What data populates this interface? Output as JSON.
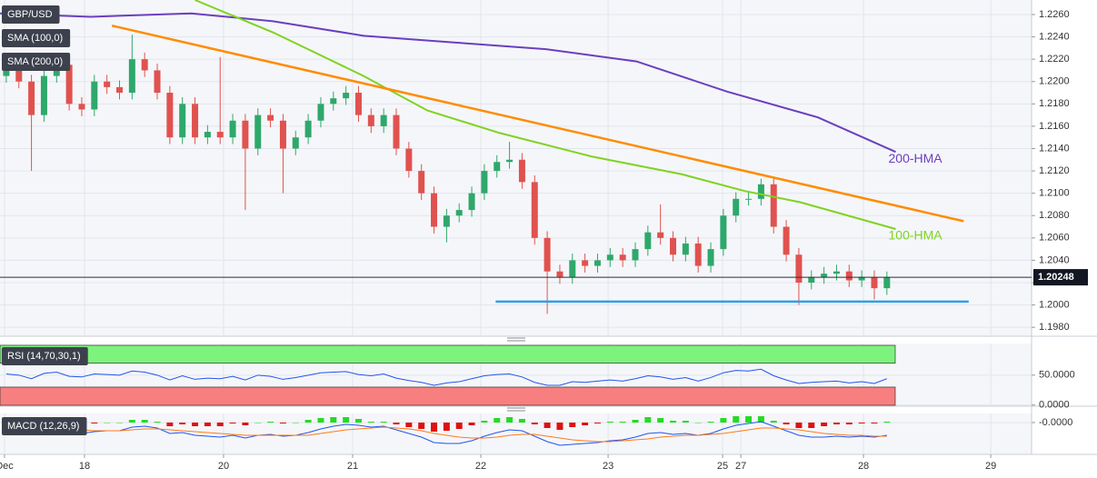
{
  "chart_data": [
    {
      "type": "candlestick",
      "title": "GBP/USD",
      "legend": [
        "SMA (100,0)",
        "SMA (200,0)"
      ],
      "x": [
        0,
        1,
        2,
        3,
        4,
        5,
        6,
        7,
        8,
        9,
        10,
        11,
        12,
        13,
        14,
        15,
        16,
        17,
        18,
        19,
        20,
        21,
        22,
        23,
        24,
        25,
        26,
        27,
        28,
        29,
        30,
        31,
        32,
        33,
        34,
        35,
        36,
        37,
        38,
        39,
        40,
        41,
        42,
        43,
        44,
        45,
        46,
        47,
        48,
        49,
        50,
        51,
        52,
        53,
        54,
        55,
        56,
        57,
        58,
        59,
        60,
        61,
        62,
        63,
        64,
        65,
        66,
        67,
        68,
        69,
        70
      ],
      "open": [
        1.2205,
        1.221,
        1.22,
        1.217,
        1.2205,
        1.2215,
        1.218,
        1.2175,
        1.22,
        1.2195,
        1.219,
        1.222,
        1.221,
        1.219,
        1.215,
        1.218,
        1.215,
        1.2155,
        1.215,
        1.2165,
        1.214,
        1.217,
        1.2165,
        1.214,
        1.215,
        1.2165,
        1.218,
        1.2185,
        1.219,
        1.217,
        1.216,
        1.217,
        1.214,
        1.212,
        1.21,
        1.207,
        1.208,
        1.2085,
        1.21,
        1.212,
        1.2128,
        1.213,
        1.211,
        1.206,
        1.203,
        1.2025,
        1.204,
        1.2035,
        1.204,
        1.2045,
        1.204,
        1.205,
        1.2065,
        1.206,
        1.2045,
        1.2055,
        1.2035,
        1.205,
        1.208,
        1.2095,
        1.2095,
        1.2108,
        1.207,
        1.2045,
        1.202,
        1.2025,
        1.2028,
        1.203,
        1.2022,
        1.2025,
        1.2015
      ],
      "high": [
        1.2216,
        1.2216,
        1.2206,
        1.2211,
        1.2221,
        1.2221,
        1.2186,
        1.2206,
        1.2206,
        1.2201,
        1.2242,
        1.2226,
        1.2216,
        1.2196,
        1.2186,
        1.2186,
        1.2161,
        1.2222,
        1.2171,
        1.2171,
        1.2176,
        1.2176,
        1.2171,
        1.2156,
        1.2171,
        1.2186,
        1.2191,
        1.2196,
        1.2196,
        1.2176,
        1.2176,
        1.2176,
        1.2146,
        1.2126,
        1.2106,
        1.2086,
        1.2091,
        1.2106,
        1.2126,
        1.2134,
        1.2146,
        1.2136,
        1.2116,
        1.2066,
        1.2036,
        1.2046,
        1.2046,
        1.2046,
        1.2051,
        1.2051,
        1.2056,
        1.2071,
        1.209,
        1.2066,
        1.2061,
        1.2061,
        1.2056,
        1.2086,
        1.2101,
        1.2101,
        1.2113,
        1.2114,
        1.2076,
        1.2051,
        1.2031,
        1.2034,
        1.2036,
        1.2036,
        1.2031,
        1.2031,
        1.203
      ],
      "low": [
        1.2199,
        1.2194,
        1.212,
        1.2164,
        1.2199,
        1.2174,
        1.2169,
        1.2169,
        1.2189,
        1.2184,
        1.2184,
        1.2204,
        1.2184,
        1.2144,
        1.2144,
        1.2144,
        1.2144,
        1.2144,
        1.2144,
        1.2085,
        1.2134,
        1.2159,
        1.21,
        1.2134,
        1.2144,
        1.2159,
        1.2174,
        1.2179,
        1.2164,
        1.2154,
        1.2154,
        1.2134,
        1.2114,
        1.2094,
        1.2064,
        1.2056,
        1.2074,
        1.2079,
        1.2094,
        1.2114,
        1.2122,
        1.2104,
        1.2054,
        1.1992,
        1.2019,
        1.2019,
        1.2029,
        1.2029,
        1.2034,
        1.2034,
        1.2034,
        1.2044,
        1.2054,
        1.2039,
        1.2039,
        1.2029,
        1.2029,
        1.2044,
        1.2074,
        1.2089,
        1.2089,
        1.2064,
        1.2039,
        1.2,
        1.2014,
        1.2019,
        1.2022,
        1.2016,
        1.2016,
        1.2005,
        1.2009
      ],
      "close": [
        1.221,
        1.22,
        1.217,
        1.2205,
        1.2215,
        1.218,
        1.2175,
        1.22,
        1.2195,
        1.219,
        1.222,
        1.221,
        1.219,
        1.215,
        1.218,
        1.215,
        1.2155,
        1.215,
        1.2165,
        1.214,
        1.217,
        1.2165,
        1.214,
        1.215,
        1.2165,
        1.218,
        1.2185,
        1.219,
        1.217,
        1.216,
        1.217,
        1.214,
        1.212,
        1.21,
        1.207,
        1.208,
        1.2085,
        1.21,
        1.212,
        1.2128,
        1.213,
        1.211,
        1.206,
        1.203,
        1.2025,
        1.204,
        1.2035,
        1.204,
        1.2045,
        1.204,
        1.205,
        1.2065,
        1.206,
        1.2045,
        1.2055,
        1.2035,
        1.205,
        1.208,
        1.2095,
        1.2095,
        1.2108,
        1.207,
        1.2045,
        1.202,
        1.2025,
        1.2028,
        1.203,
        1.2022,
        1.2025,
        1.2015,
        1.20248
      ],
      "up_color": "#2ea86b",
      "down_color": "#e0524f",
      "lines": [
        {
          "name": "200-HMA",
          "color": "#6a3fbf",
          "x": [
            -0.5,
            6.7,
            14.7,
            21.2,
            28.4,
            35.6,
            42.9,
            50.1,
            57.3,
            64.5,
            70.7
          ],
          "values": [
            1.2261,
            1.2258,
            1.2261,
            1.2254,
            1.2241,
            1.2235,
            1.2229,
            1.2218,
            1.2191,
            1.2168,
            1.2137
          ]
        },
        {
          "name": "100-HMA",
          "color": "#7ed321",
          "x": [
            15.0,
            21.2,
            28.4,
            33.5,
            39.2,
            46.5,
            53.7,
            58.7,
            63.1,
            70.7
          ],
          "values": [
            1.2273,
            1.2244,
            1.2205,
            1.2174,
            1.2154,
            1.2133,
            1.2117,
            1.2102,
            1.2092,
            1.2068
          ]
        }
      ],
      "trendlines": [
        {
          "color": "#ff8c00",
          "x": [
            8.4,
            76.1
          ],
          "values": [
            1.225,
            1.2075
          ]
        },
        {
          "color": "#2f9fe8",
          "x": [
            38.9,
            76.5
          ],
          "values": [
            1.2003,
            1.2003
          ]
        }
      ],
      "last_price": 1.20248,
      "xlim": [
        -0.5,
        81.5
      ],
      "ylim": [
        1.1972,
        1.2273
      ],
      "xticks": [
        {
          "value": -0.14,
          "label": "Dec"
        },
        {
          "value": 6.22,
          "label": "18"
        },
        {
          "value": 17.27,
          "label": "20"
        },
        {
          "value": 27.53,
          "label": "21"
        },
        {
          "value": 37.72,
          "label": "22"
        },
        {
          "value": 47.84,
          "label": "23"
        },
        {
          "value": 56.94,
          "label": "25"
        },
        {
          "value": 58.39,
          "label": "27"
        },
        {
          "value": 68.14,
          "label": "28"
        },
        {
          "value": 78.26,
          "label": "29"
        }
      ],
      "yticks": [
        {
          "value": 1.198,
          "label": "1.1980"
        },
        {
          "value": 1.2,
          "label": "1.2000"
        },
        {
          "value": 1.202,
          "label": "1.2020"
        },
        {
          "value": 1.204,
          "label": "1.2040"
        },
        {
          "value": 1.206,
          "label": "1.2060"
        },
        {
          "value": 1.208,
          "label": "1.2080"
        },
        {
          "value": 1.21,
          "label": "1.2100"
        },
        {
          "value": 1.212,
          "label": "1.2120"
        },
        {
          "value": 1.214,
          "label": "1.2140"
        },
        {
          "value": 1.216,
          "label": "1.2160"
        },
        {
          "value": 1.218,
          "label": "1.2180"
        },
        {
          "value": 1.22,
          "label": "1.2200"
        },
        {
          "value": 1.222,
          "label": "1.2220"
        },
        {
          "value": 1.224,
          "label": "1.2240"
        },
        {
          "value": 1.226,
          "label": "1.2260"
        }
      ],
      "grid": true
    },
    {
      "type": "rsi",
      "title": "RSI (14,70,30,1)",
      "series": [
        {
          "color": "#2255ee",
          "values": [
            52,
            50,
            44,
            53,
            55,
            48,
            47,
            52,
            51,
            50,
            57,
            55,
            50,
            42,
            49,
            43,
            45,
            44,
            48,
            42,
            50,
            48,
            43,
            46,
            50,
            54,
            55,
            56,
            51,
            49,
            52,
            45,
            41,
            38,
            33,
            37,
            39,
            44,
            49,
            51,
            52,
            47,
            38,
            33,
            33,
            39,
            38,
            40,
            42,
            40,
            44,
            49,
            47,
            43,
            46,
            40,
            46,
            54,
            58,
            57,
            60,
            49,
            42,
            36,
            38,
            39,
            40,
            37,
            39,
            36,
            44
          ]
        }
      ],
      "overbought": 70,
      "oversold": 30,
      "overbought_color": "#7df27d",
      "oversold_color": "#f77f7f",
      "ylim": [
        -2,
        103
      ],
      "yticks": [
        {
          "value": 50,
          "label": "50.0000"
        },
        {
          "value": 0,
          "label": "0.0000"
        }
      ]
    },
    {
      "type": "macd",
      "title": "MACD (12,26,9)",
      "series": [
        {
          "color": "#2255ee",
          "values": [
            -0.0005,
            -0.0008,
            -0.0012,
            -0.001,
            -0.0008,
            -0.001,
            -0.0012,
            -0.001,
            -0.0009,
            -0.0009,
            -0.0005,
            -0.0004,
            -0.0006,
            -0.0012,
            -0.0011,
            -0.0014,
            -0.0015,
            -0.0016,
            -0.0014,
            -0.0017,
            -0.0014,
            -0.0013,
            -0.0015,
            -0.0014,
            -0.0011,
            -0.0007,
            -0.0004,
            -0.0002,
            -0.0003,
            -0.0005,
            -0.0004,
            -0.0008,
            -0.0012,
            -0.0016,
            -0.0022,
            -0.0023,
            -0.0023,
            -0.002,
            -0.0015,
            -0.0011,
            -0.0008,
            -0.0009,
            -0.0015,
            -0.0021,
            -0.0025,
            -0.0024,
            -0.0023,
            -0.0022,
            -0.002,
            -0.0019,
            -0.0016,
            -0.0012,
            -0.0011,
            -0.0013,
            -0.0012,
            -0.0014,
            -0.0012,
            -0.0007,
            -0.0003,
            -0.0001,
            0.0001,
            -0.0004,
            -0.0009,
            -0.0014,
            -0.0016,
            -0.0016,
            -0.0015,
            -0.0016,
            -0.0015,
            -0.0016,
            -0.0014
          ]
        },
        {
          "color": "#ff7a1a",
          "values": [
            -0.0003,
            -0.0004,
            -0.0005,
            -0.0006,
            -0.0007,
            -0.0008,
            -0.0008,
            -0.0009,
            -0.0009,
            -0.0009,
            -0.0008,
            -0.0007,
            -0.0007,
            -0.0008,
            -0.0009,
            -0.001,
            -0.0011,
            -0.0012,
            -0.0013,
            -0.0014,
            -0.0014,
            -0.0014,
            -0.0014,
            -0.0014,
            -0.0014,
            -0.0012,
            -0.001,
            -0.0008,
            -0.0007,
            -0.0006,
            -0.0005,
            -0.0006,
            -0.0007,
            -0.0009,
            -0.0012,
            -0.0014,
            -0.0016,
            -0.0017,
            -0.0017,
            -0.0016,
            -0.0014,
            -0.0013,
            -0.0013,
            -0.0015,
            -0.0017,
            -0.0019,
            -0.002,
            -0.0021,
            -0.0021,
            -0.002,
            -0.0019,
            -0.0018,
            -0.0016,
            -0.0015,
            -0.0014,
            -0.0014,
            -0.0013,
            -0.0012,
            -0.001,
            -0.0008,
            -0.0006,
            -0.0006,
            -0.0007,
            -0.0008,
            -0.001,
            -0.0012,
            -0.0013,
            -0.0014,
            -0.0014,
            -0.0015,
            -0.0015
          ]
        }
      ],
      "histogram": {
        "up_color": "#22dd22",
        "down_color": "#e01010",
        "values": [
          -0.0002,
          -0.0004,
          -0.0007,
          -0.0004,
          -0.0001,
          -0.0002,
          -0.0004,
          -0.0001,
          0,
          0,
          0.0003,
          0.0003,
          0.0001,
          -0.0004,
          -0.0002,
          -0.0004,
          -0.0004,
          -0.0004,
          -0.0001,
          -0.0003,
          0,
          0.0001,
          -0.0001,
          0,
          0.0003,
          0.0005,
          0.0006,
          0.0006,
          0.0004,
          0.0001,
          0.0001,
          -0.0002,
          -0.0005,
          -0.0007,
          -0.001,
          -0.0009,
          -0.0007,
          -0.0003,
          0.0002,
          0.0005,
          0.0006,
          0.0004,
          -0.0002,
          -0.0006,
          -0.0008,
          -0.0005,
          -0.0003,
          -0.0001,
          0.0001,
          0.0001,
          0.0003,
          0.0006,
          0.0005,
          0.0002,
          0.0002,
          0,
          0.0001,
          0.0005,
          0.0007,
          0.0007,
          0.0007,
          0.0002,
          -0.0002,
          -0.0006,
          -0.0006,
          -0.0004,
          -0.0002,
          -0.0002,
          -0.0001,
          -0.0001,
          0.0001
        ]
      },
      "ylim": [
        -0.0035,
        0.001
      ],
      "yticks": [
        {
          "value": 0,
          "label": "-0.0000"
        }
      ]
    }
  ]
}
